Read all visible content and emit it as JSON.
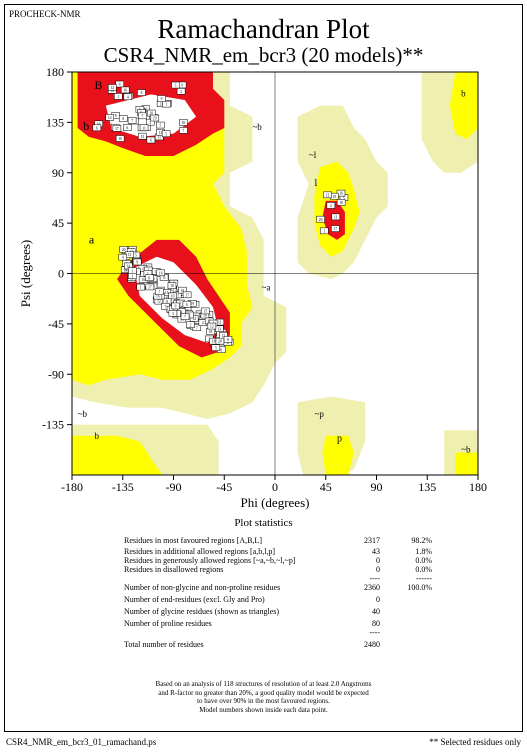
{
  "header": {
    "program": "PROCHECK-NMR"
  },
  "title": "Ramachandran Plot",
  "subtitle": "CSR4_NMR_em_bcr3 (20 models)**",
  "chart_data": {
    "type": "scatter",
    "xlabel": "Phi (degrees)",
    "ylabel": "Psi (degrees)",
    "xlim": [
      -180,
      180
    ],
    "ylim": [
      -180,
      180
    ],
    "xticks": [
      "-180",
      "-135",
      "-90",
      "-45",
      "0",
      "45",
      "90",
      "135",
      "180"
    ],
    "yticks": [
      "180",
      "135",
      "90",
      "45",
      "0",
      "-45",
      "-90",
      "-135"
    ],
    "grid": false,
    "region_labels": [
      "B",
      "b",
      "~b",
      "b",
      "~l",
      "l",
      "a",
      "~a",
      "~b",
      "b",
      "~p",
      "p",
      "~b"
    ],
    "region_colors": {
      "core": "#e8101a",
      "allowed": "#ffff00",
      "generous": "#efefb0",
      "disallowed": "#ffffff"
    },
    "clusters": [
      {
        "region": "beta",
        "phi": [
          -150,
          -78
        ],
        "psi": [
          118,
          170
        ],
        "count": 44,
        "model_labels": [
          "12",
          "18",
          "19",
          "16",
          "17",
          "14",
          "11",
          "15",
          "13",
          "20",
          "10",
          "9",
          "8",
          "7",
          "6",
          "5",
          "4",
          "3",
          "2",
          "1",
          "18",
          "12",
          "16",
          "11",
          "19",
          "20",
          "17",
          "15",
          "14",
          "13",
          "10",
          "9",
          "8",
          "7",
          "6",
          "5",
          "4",
          "3",
          "2",
          "1",
          "6",
          "7",
          "8",
          "9"
        ]
      },
      {
        "region": "beta-b",
        "phi": [
          -158,
          -152
        ],
        "psi": [
          128,
          134
        ],
        "count": 2,
        "model_labels": [
          "16",
          "6"
        ]
      },
      {
        "region": "alpha",
        "phi": [
          -135,
          -38
        ],
        "psi": [
          -65,
          15
        ],
        "count": 120,
        "model_labels": [
          "10",
          "11",
          "19",
          "20",
          "18",
          "15",
          "16",
          "12",
          "14",
          "13",
          "17",
          "9",
          "8",
          "7",
          "6",
          "5",
          "4",
          "3",
          "2",
          "1",
          "18",
          "11",
          "19",
          "20",
          "12",
          "15",
          "16",
          "14",
          "17",
          "13",
          "10",
          "9",
          "8",
          "7",
          "6",
          "5",
          "4",
          "3",
          "2",
          "1",
          "11",
          "15",
          "18",
          "19",
          "20",
          "17",
          "14",
          "16",
          "12",
          "13",
          "10",
          "9",
          "8",
          "7",
          "6",
          "5",
          "4",
          "3",
          "2",
          "1",
          "11",
          "15",
          "18",
          "19",
          "20",
          "17",
          "14",
          "16",
          "12",
          "13",
          "10",
          "9",
          "8",
          "7",
          "6",
          "5",
          "4",
          "3",
          "2",
          "1",
          "11",
          "15",
          "18",
          "19",
          "20",
          "17",
          "14",
          "16",
          "12",
          "13",
          "10",
          "9",
          "8",
          "7",
          "6",
          "5",
          "4",
          "3",
          "2",
          "1",
          "11",
          "15",
          "18",
          "19",
          "20",
          "17",
          "14",
          "16",
          "12",
          "13",
          "10",
          "9",
          "8",
          "7",
          "6",
          "5",
          "4",
          "3",
          "2",
          "1"
        ]
      },
      {
        "region": "left-handed",
        "phi": [
          40,
          62
        ],
        "psi": [
          38,
          72
        ],
        "count": 10,
        "model_labels": [
          "2",
          "5",
          "1",
          "16",
          "18",
          "19",
          "20",
          "17",
          "11",
          "12"
        ]
      }
    ]
  },
  "statistics": {
    "title": "Plot statistics",
    "rows": [
      {
        "label": "Residues in most favoured regions  [A,B,L]",
        "count": "2317",
        "pct": "98.2%"
      },
      {
        "label": "Residues in additional allowed regions  [a,b,l,p]",
        "count": "43",
        "pct": "1.8%"
      },
      {
        "label": "Residues in generously allowed regions  [~a,~b,~l,~p]",
        "count": "0",
        "pct": "0.0%"
      },
      {
        "label": "Residues in disallowed regions",
        "count": "0",
        "pct": "0.0%"
      },
      {
        "label": "",
        "count": "----",
        "pct": "------"
      },
      {
        "label": "Number of non-glycine and non-proline residues",
        "count": "2360",
        "pct": "100.0%"
      },
      {
        "label": "Number of end-residues (excl. Gly and Pro)",
        "count": "0",
        "pct": ""
      },
      {
        "label": "Number of glycine residues (shown as triangles)",
        "count": "40",
        "pct": ""
      },
      {
        "label": "Number of proline residues",
        "count": "80",
        "pct": ""
      },
      {
        "label": "",
        "count": "----",
        "pct": ""
      },
      {
        "label": "Total number of residues",
        "count": "2480",
        "pct": ""
      }
    ]
  },
  "note": [
    "Based on an analysis of 118 structures of resolution of at least 2.0 Angstroms",
    "and R-factor no greater than 20%, a good quality model would be expected",
    "to have over 90% in the most favoured regions.",
    "Model numbers shown inside each data point."
  ],
  "footer": {
    "file": "CSR4_NMR_em_bcr3_01_ramachand.ps",
    "selected": "** Selected residues only"
  }
}
